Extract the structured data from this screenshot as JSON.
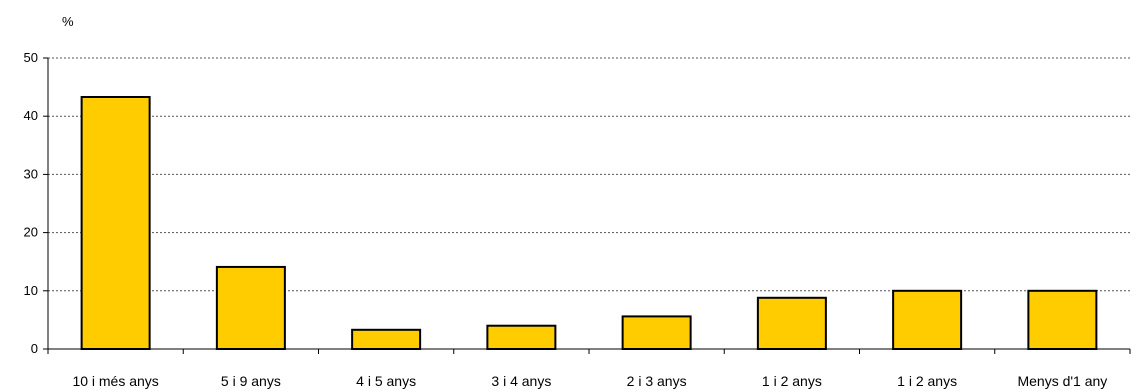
{
  "chart_data": {
    "type": "bar",
    "ylabel": "%",
    "ylim": [
      0,
      50
    ],
    "yticks": [
      0,
      10,
      20,
      30,
      40,
      50
    ],
    "grid": true,
    "categories": [
      "10 i més anys",
      "5 i 9 anys",
      "4 i 5 anys",
      "3 i 4 anys",
      "2 i 3 anys",
      "1 i 2 anys",
      "1 i 2 anys",
      "Menys d'1 any"
    ],
    "values": [
      43.3,
      14.1,
      3.3,
      4.0,
      5.6,
      8.8,
      10.0,
      10.0
    ],
    "colors": {
      "bar": "#FFCC00",
      "bar_stroke": "#000000",
      "grid": "#555555",
      "axis": "#000000"
    }
  }
}
